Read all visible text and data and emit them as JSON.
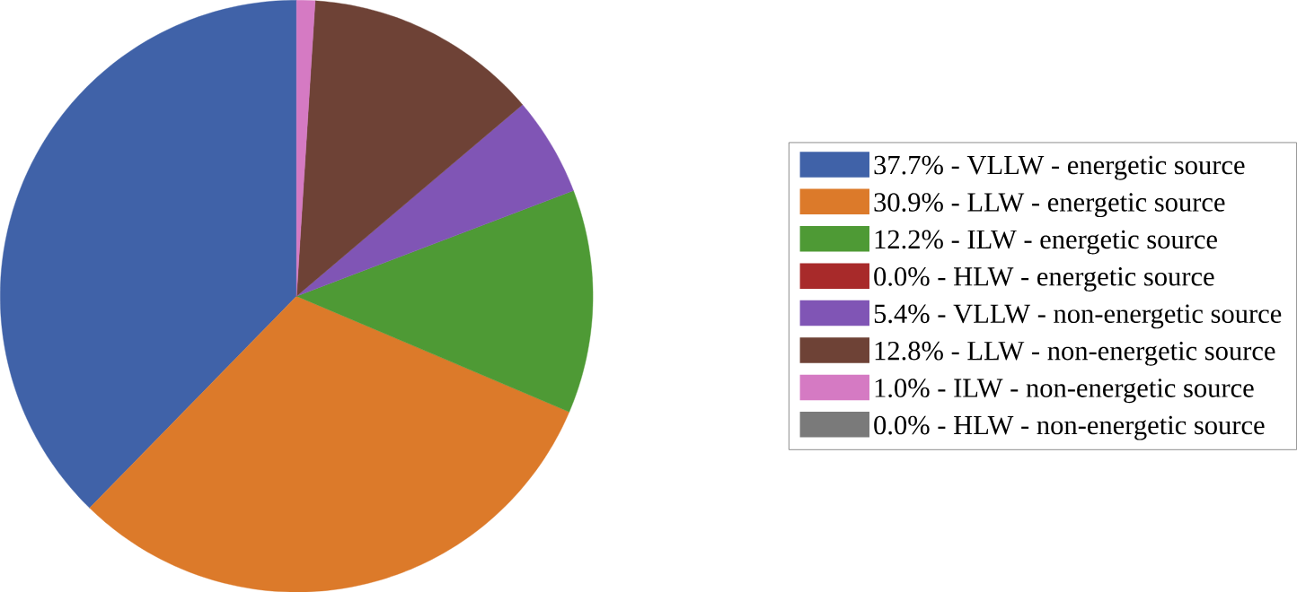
{
  "chart_data": {
    "type": "pie",
    "legend": "right",
    "categories": [
      "37.7% - VLLW - energetic source",
      "30.9% - LLW - energetic source",
      "12.2% - ILW - energetic source",
      "0.0% - HLW - energetic source",
      "5.4% - VLLW - non-energetic source",
      "12.8% - LLW - non-energetic source",
      "1.0% - ILW - non-energetic source",
      "0.0% - HLW - non-energetic source"
    ],
    "values": [
      37.7,
      30.9,
      12.2,
      0.0,
      5.4,
      12.8,
      1.0,
      0.0
    ],
    "colors": [
      "#4062a8",
      "#dc7a2a",
      "#4e9a35",
      "#a82a2a",
      "#8055b5",
      "#6e4236",
      "#d57ac3",
      "#7a7a7a"
    ]
  }
}
